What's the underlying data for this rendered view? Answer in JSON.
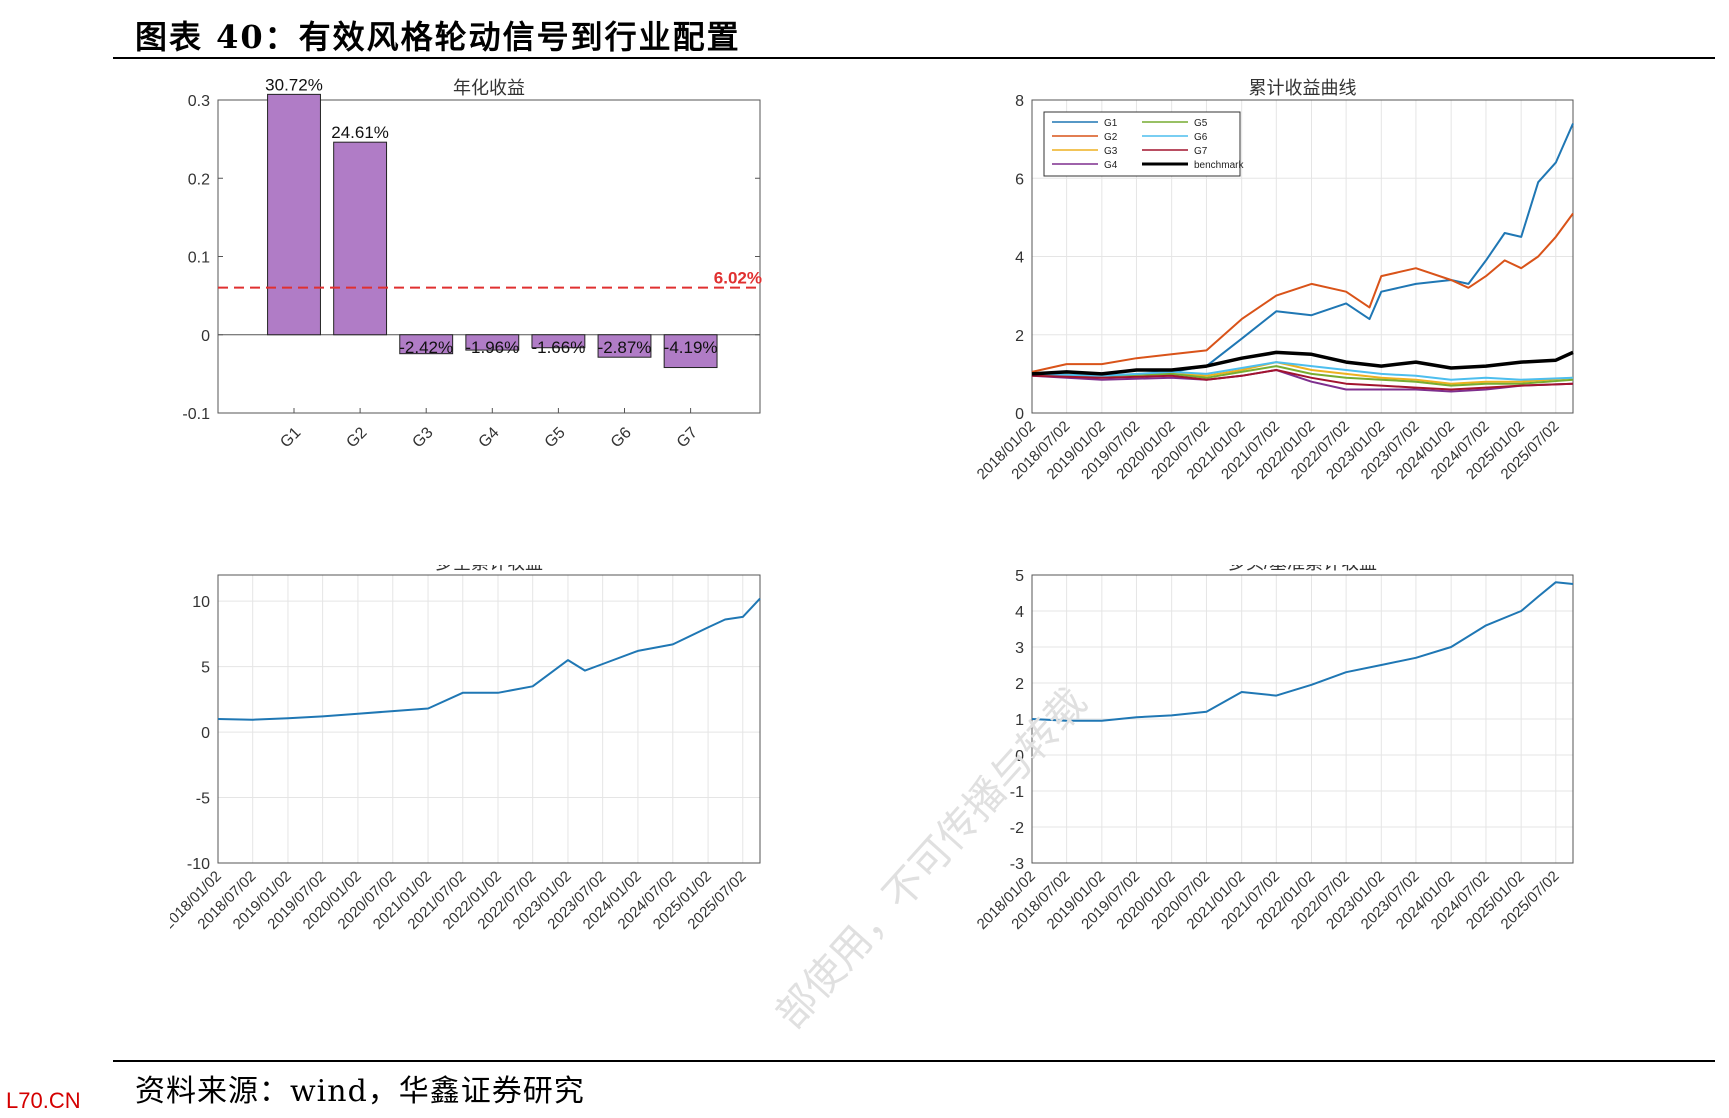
{
  "header": {
    "title": "图表 40：有效风格轮动信号到行业配置"
  },
  "footer": {
    "source": "资料来源：wind，华鑫证券研究",
    "corner_mark": "L70.CN"
  },
  "watermark": {
    "text": "部使用，不可传播与转载"
  },
  "colors": {
    "bar_fill": "#b07cc6",
    "ref_line": "#e03030",
    "grid": "#e5e5e5",
    "G1": "#1f77b4",
    "G2": "#d95319",
    "G3": "#edb120",
    "G4": "#7e2f8e",
    "G5": "#77ac30",
    "G6": "#4dbeee",
    "G7": "#a2142f",
    "benchmark": "#000000",
    "line_blue": "#1f77b4"
  },
  "date_ticks": [
    "2018/01/02",
    "2018/07/02",
    "2019/01/02",
    "2019/07/02",
    "2020/01/02",
    "2020/07/02",
    "2021/01/02",
    "2021/07/02",
    "2022/01/02",
    "2022/07/02",
    "2023/01/02",
    "2023/07/02",
    "2024/01/02",
    "2024/07/02",
    "2025/01/02",
    "2025/07/02"
  ],
  "chart_data": [
    {
      "type": "bar",
      "title": "年化收益",
      "categories": [
        "G1",
        "G2",
        "G3",
        "G4",
        "G5",
        "G6",
        "G7"
      ],
      "values": [
        0.3072,
        0.2461,
        -0.0242,
        -0.0196,
        -0.0166,
        -0.0287,
        -0.0419
      ],
      "data_labels": [
        "30.72%",
        "24.61%",
        "-2.42%",
        "-1.96%",
        "-1.66%",
        "-2.87%",
        "-4.19%"
      ],
      "reference_line": {
        "value": 0.0602,
        "label": "6.02%",
        "style": "dashed",
        "color": "#e03030"
      },
      "ylim": [
        -0.1,
        0.3
      ],
      "yticks": [
        -0.1,
        0,
        0.1,
        0.2,
        0.3
      ],
      "ytick_labels": [
        "-0.1",
        "0",
        "0.1",
        "0.2",
        "0.3"
      ],
      "grid": false
    },
    {
      "type": "line",
      "title": "累计收益曲线",
      "x_range": [
        "2018/01/02",
        "2025/09/30"
      ],
      "ylim": [
        0,
        8
      ],
      "yticks": [
        0,
        2,
        4,
        6,
        8
      ],
      "grid": true,
      "legend": {
        "placement": "top-left",
        "columns": 2,
        "entries": [
          "G1",
          "G5",
          "G2",
          "G6",
          "G3",
          "G7",
          "G4",
          "benchmark"
        ]
      },
      "series": [
        {
          "name": "G1",
          "x": [
            "2018/01/02",
            "2018/07/02",
            "2019/01/02",
            "2019/07/02",
            "2020/01/02",
            "2020/07/02",
            "2021/01/02",
            "2021/07/02",
            "2022/01/02",
            "2022/07/02",
            "2022/11/01",
            "2023/01/02",
            "2023/07/02",
            "2024/01/02",
            "2024/04/01",
            "2024/07/02",
            "2024/10/08",
            "2025/01/02",
            "2025/04/01",
            "2025/07/02",
            "2025/09/30"
          ],
          "y": [
            1.0,
            1.05,
            1.0,
            1.1,
            1.05,
            1.2,
            1.9,
            2.6,
            2.5,
            2.8,
            2.4,
            3.1,
            3.3,
            3.4,
            3.3,
            3.9,
            4.6,
            4.5,
            5.9,
            6.4,
            7.4
          ]
        },
        {
          "name": "G2",
          "x": [
            "2018/01/02",
            "2018/07/02",
            "2019/01/02",
            "2019/07/02",
            "2020/01/02",
            "2020/07/02",
            "2021/01/02",
            "2021/07/02",
            "2022/01/02",
            "2022/07/02",
            "2022/11/01",
            "2023/01/02",
            "2023/07/02",
            "2024/01/02",
            "2024/04/01",
            "2024/07/02",
            "2024/10/08",
            "2025/01/02",
            "2025/04/01",
            "2025/07/02",
            "2025/09/30"
          ],
          "y": [
            1.05,
            1.25,
            1.25,
            1.4,
            1.5,
            1.6,
            2.4,
            3.0,
            3.3,
            3.1,
            2.7,
            3.5,
            3.7,
            3.4,
            3.2,
            3.5,
            3.9,
            3.7,
            4.0,
            4.5,
            5.1
          ]
        },
        {
          "name": "G3",
          "x": [
            "2018/01/02",
            "2019/01/02",
            "2020/01/02",
            "2020/07/02",
            "2021/01/02",
            "2021/07/02",
            "2022/01/02",
            "2022/07/02",
            "2023/01/02",
            "2023/07/02",
            "2024/01/02",
            "2024/07/02",
            "2025/01/02",
            "2025/09/30"
          ],
          "y": [
            1.0,
            0.95,
            1.0,
            0.95,
            1.1,
            1.3,
            1.1,
            1.0,
            0.9,
            0.85,
            0.75,
            0.8,
            0.8,
            0.9
          ]
        },
        {
          "name": "G4",
          "x": [
            "2018/01/02",
            "2019/01/02",
            "2020/01/02",
            "2020/07/02",
            "2021/01/02",
            "2021/07/02",
            "2022/01/02",
            "2022/07/02",
            "2023/01/02",
            "2023/07/02",
            "2024/01/02",
            "2024/07/02",
            "2025/01/02",
            "2025/09/30"
          ],
          "y": [
            0.95,
            0.85,
            0.9,
            0.85,
            0.95,
            1.1,
            0.8,
            0.6,
            0.6,
            0.6,
            0.55,
            0.6,
            0.7,
            0.75
          ]
        },
        {
          "name": "G5",
          "x": [
            "2018/01/02",
            "2019/01/02",
            "2020/01/02",
            "2020/07/02",
            "2021/01/02",
            "2021/07/02",
            "2022/01/02",
            "2022/07/02",
            "2023/01/02",
            "2023/07/02",
            "2024/01/02",
            "2024/07/02",
            "2025/01/02",
            "2025/09/30"
          ],
          "y": [
            1.0,
            0.95,
            1.0,
            0.9,
            1.05,
            1.2,
            1.0,
            0.9,
            0.85,
            0.8,
            0.7,
            0.75,
            0.75,
            0.85
          ]
        },
        {
          "name": "G6",
          "x": [
            "2018/01/02",
            "2019/01/02",
            "2020/01/02",
            "2020/07/02",
            "2021/01/02",
            "2021/07/02",
            "2022/01/02",
            "2022/07/02",
            "2023/01/02",
            "2023/07/02",
            "2024/01/02",
            "2024/07/02",
            "2025/01/02",
            "2025/09/30"
          ],
          "y": [
            1.0,
            0.95,
            1.05,
            1.0,
            1.15,
            1.3,
            1.2,
            1.1,
            1.0,
            0.95,
            0.85,
            0.9,
            0.85,
            0.9
          ]
        },
        {
          "name": "G7",
          "x": [
            "2018/01/02",
            "2019/01/02",
            "2020/01/02",
            "2020/07/02",
            "2021/01/02",
            "2021/07/02",
            "2022/01/02",
            "2022/07/02",
            "2023/01/02",
            "2023/07/02",
            "2024/01/02",
            "2024/07/02",
            "2025/01/02",
            "2025/09/30"
          ],
          "y": [
            0.95,
            0.9,
            0.95,
            0.85,
            0.95,
            1.1,
            0.9,
            0.75,
            0.7,
            0.65,
            0.6,
            0.65,
            0.7,
            0.75
          ]
        },
        {
          "name": "benchmark",
          "x": [
            "2018/01/02",
            "2018/07/02",
            "2019/01/02",
            "2019/07/02",
            "2020/01/02",
            "2020/07/02",
            "2021/01/02",
            "2021/07/02",
            "2022/01/02",
            "2022/07/02",
            "2023/01/02",
            "2023/07/02",
            "2024/01/02",
            "2024/07/02",
            "2025/01/02",
            "2025/07/02",
            "2025/09/30"
          ],
          "y": [
            1.0,
            1.05,
            1.0,
            1.1,
            1.1,
            1.2,
            1.4,
            1.55,
            1.5,
            1.3,
            1.2,
            1.3,
            1.15,
            1.2,
            1.3,
            1.35,
            1.55
          ]
        }
      ]
    },
    {
      "type": "line",
      "title": "多空累计收益",
      "x_range": [
        "2018/01/02",
        "2025/09/30"
      ],
      "ylim": [
        -10,
        12
      ],
      "yticks": [
        -10,
        -5,
        0,
        5,
        10
      ],
      "grid": true,
      "series": [
        {
          "x": [
            "2018/01/02",
            "2018/07/02",
            "2019/01/02",
            "2019/07/02",
            "2020/01/02",
            "2020/07/02",
            "2021/01/02",
            "2021/07/02",
            "2022/01/02",
            "2022/07/02",
            "2023/01/02",
            "2023/04/01",
            "2023/07/02",
            "2024/01/02",
            "2024/07/02",
            "2025/01/02",
            "2025/04/01",
            "2025/07/02",
            "2025/09/30"
          ],
          "y": [
            1.0,
            0.95,
            1.05,
            1.2,
            1.4,
            1.6,
            1.8,
            3.0,
            3.0,
            3.5,
            5.5,
            4.7,
            5.2,
            6.2,
            6.7,
            8.0,
            8.6,
            8.8,
            10.2
          ]
        }
      ]
    },
    {
      "type": "line",
      "title": "多头/基准累计收益",
      "x_range": [
        "2018/01/02",
        "2025/09/30"
      ],
      "ylim": [
        -3,
        5
      ],
      "yticks": [
        -3,
        -2,
        -1,
        0,
        1,
        2,
        3,
        4,
        5
      ],
      "grid": true,
      "series": [
        {
          "x": [
            "2018/01/02",
            "2018/07/02",
            "2019/01/02",
            "2019/07/02",
            "2020/01/02",
            "2020/07/02",
            "2021/01/02",
            "2021/07/02",
            "2022/01/02",
            "2022/07/02",
            "2023/01/02",
            "2023/07/02",
            "2024/01/02",
            "2024/07/02",
            "2025/01/02",
            "2025/04/01",
            "2025/07/02",
            "2025/09/30"
          ],
          "y": [
            1.0,
            0.95,
            0.95,
            1.05,
            1.1,
            1.2,
            1.75,
            1.65,
            1.95,
            2.3,
            2.5,
            2.7,
            3.0,
            3.6,
            4.0,
            4.4,
            4.8,
            4.75
          ]
        }
      ]
    }
  ]
}
